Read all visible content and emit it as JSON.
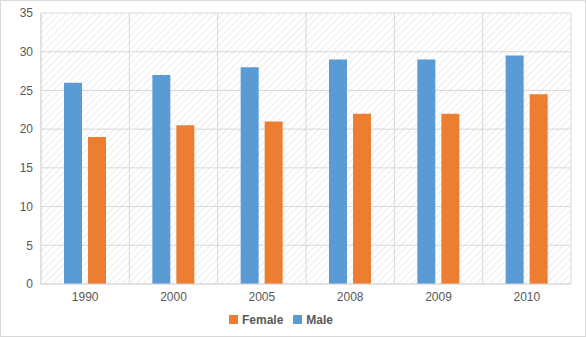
{
  "chart_data": {
    "type": "bar",
    "categories": [
      "1990",
      "2000",
      "2005",
      "2008",
      "2009",
      "2010"
    ],
    "series": [
      {
        "name": "Male",
        "color": "#5b9bd5",
        "values": [
          26,
          27,
          28,
          29,
          29,
          29.5
        ]
      },
      {
        "name": "Female",
        "color": "#ed7d31",
        "values": [
          19,
          20.5,
          21,
          22,
          22,
          24.5
        ]
      }
    ],
    "ylim": [
      0,
      35
    ],
    "yticks": [
      0,
      5,
      10,
      15,
      20,
      25,
      30,
      35
    ],
    "grid": true,
    "legend": "bottom"
  }
}
